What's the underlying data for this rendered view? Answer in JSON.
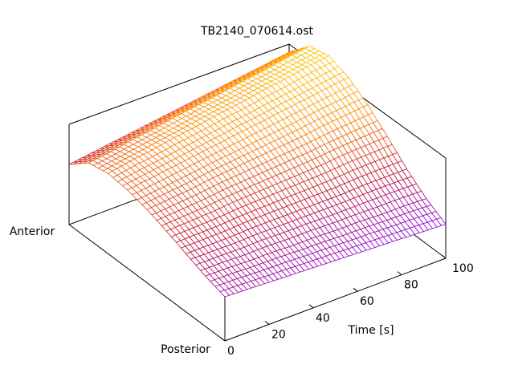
{
  "chart_data": {
    "type": "surface",
    "title": "TB2140_070614.ost",
    "xlabel": "Time [s]",
    "ylabel_start": "Anterior",
    "ylabel_end": "Posterior",
    "x_ticks": [
      "0",
      "20",
      "40",
      "60",
      "80",
      "100"
    ],
    "xlim": [
      0,
      100
    ],
    "time": [
      0,
      10,
      20,
      30,
      40,
      50,
      60,
      70,
      80,
      90,
      100
    ],
    "position_from_posterior": [
      0,
      0.125,
      0.25,
      0.375,
      0.5,
      0.625,
      0.75,
      0.875,
      1.0
    ],
    "z": [
      [
        0.44,
        0.5,
        0.58,
        0.66,
        0.73,
        0.78,
        0.8,
        0.76,
        0.6
      ],
      [
        0.43,
        0.5,
        0.58,
        0.67,
        0.75,
        0.81,
        0.84,
        0.79,
        0.63
      ],
      [
        0.42,
        0.49,
        0.58,
        0.68,
        0.77,
        0.84,
        0.87,
        0.83,
        0.66
      ],
      [
        0.41,
        0.49,
        0.59,
        0.7,
        0.8,
        0.87,
        0.91,
        0.86,
        0.69
      ],
      [
        0.4,
        0.48,
        0.59,
        0.71,
        0.82,
        0.9,
        0.94,
        0.9,
        0.72
      ],
      [
        0.39,
        0.48,
        0.59,
        0.72,
        0.84,
        0.93,
        0.98,
        0.93,
        0.75
      ],
      [
        0.38,
        0.47,
        0.59,
        0.73,
        0.86,
        0.96,
        1.01,
        0.96,
        0.78
      ],
      [
        0.37,
        0.47,
        0.59,
        0.74,
        0.88,
        0.99,
        1.05,
        1.0,
        0.81
      ],
      [
        0.36,
        0.46,
        0.6,
        0.76,
        0.91,
        1.02,
        1.08,
        1.03,
        0.84
      ],
      [
        0.35,
        0.46,
        0.6,
        0.77,
        0.93,
        1.05,
        1.12,
        1.07,
        0.87
      ],
      [
        0.34,
        0.45,
        0.6,
        0.78,
        0.95,
        1.08,
        1.15,
        1.1,
        0.9
      ]
    ],
    "palette": [
      "#8a00e0",
      "#c8102e",
      "#ff7f00",
      "#ffc800"
    ],
    "grid": false
  }
}
